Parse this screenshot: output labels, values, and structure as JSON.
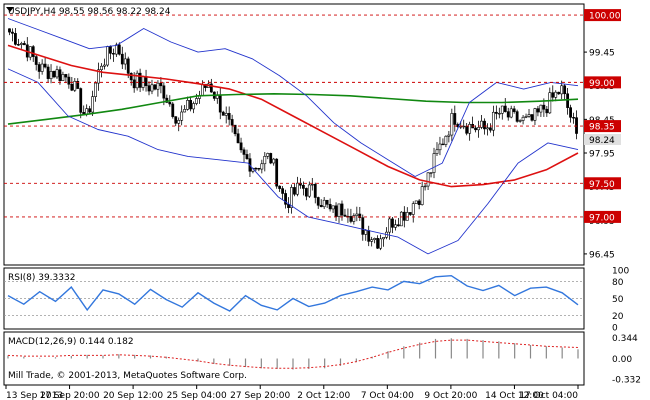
{
  "chart_data": {
    "type": "candlestick",
    "symbol": "USDJPY",
    "timeframe": "H4",
    "main_label": "USDJPY,H4  98.55 98.56 98.22 98.24",
    "last_price": "98.24",
    "price_range": [
      96.3,
      100.15
    ],
    "price_ticks": [
      "99.45",
      "98.95",
      "98.45",
      "97.95",
      "97.45",
      "96.95",
      "96.45"
    ],
    "levels": [
      {
        "value": 100.0,
        "label": "100.00"
      },
      {
        "value": 99.0,
        "label": "99.00"
      },
      {
        "value": 98.35,
        "label": "98.35"
      },
      {
        "value": 97.5,
        "label": "97.50"
      },
      {
        "value": 97.0,
        "label": "97.00"
      }
    ],
    "x_labels": [
      "13 Sep 2013",
      "17 Sep 20:00",
      "20 Sep 12:00",
      "25 Sep 04:00",
      "27 Sep 20:00",
      "2 Oct 12:00",
      "7 Oct 04:00",
      "9 Oct 20:00",
      "14 Oct 12:00",
      "17 Oct 04:00"
    ],
    "close_anchors": [
      99.75,
      99.55,
      99.2,
      99.15,
      99.05,
      98.45,
      99.3,
      99.55,
      99.05,
      98.95,
      98.9,
      98.45,
      98.7,
      99.0,
      98.55,
      97.95,
      97.75,
      97.9,
      97.2,
      97.45,
      97.35,
      97.05,
      97.15,
      96.85,
      96.65,
      96.95,
      97.1,
      97.4,
      98.0,
      98.5,
      98.35,
      98.3,
      98.55,
      98.45,
      98.4,
      98.65,
      98.9,
      98.24
    ],
    "series": [
      {
        "name": "MA50",
        "values": [
          99.55,
          99.4,
          99.25,
          99.15,
          99.1,
          99.05,
          98.98,
          98.9,
          98.75,
          98.5,
          98.25,
          98.0,
          97.75,
          97.55,
          97.45,
          97.48,
          97.55,
          97.7,
          97.95
        ]
      },
      {
        "name": "MA200",
        "values": [
          98.38,
          98.45,
          98.52,
          98.6,
          98.7,
          98.8,
          98.82,
          98.83,
          98.82,
          98.8,
          98.76,
          98.72,
          98.7,
          98.7,
          98.72,
          98.75
        ]
      },
      {
        "name": "BB Upper",
        "values": [
          99.95,
          99.8,
          99.65,
          99.5,
          99.55,
          99.8,
          99.6,
          99.45,
          99.5,
          99.35,
          99.1,
          98.8,
          98.4,
          98.1,
          97.85,
          97.6,
          97.8,
          98.7,
          99.0,
          98.9,
          99.0,
          98.95
        ]
      },
      {
        "name": "BB Lower",
        "values": [
          99.2,
          99.0,
          98.5,
          98.3,
          98.2,
          98.0,
          97.9,
          97.85,
          97.8,
          97.3,
          97.0,
          96.9,
          96.8,
          96.7,
          96.45,
          96.65,
          97.2,
          97.8,
          98.1,
          98.0
        ]
      }
    ],
    "rsi": {
      "label": "RSI(8) 39.3332",
      "range": [
        0,
        100
      ],
      "ticks": [
        "100",
        "80",
        "50",
        "20",
        "0"
      ],
      "levels": [
        80,
        50,
        20
      ],
      "values": [
        55,
        40,
        62,
        45,
        70,
        30,
        65,
        58,
        40,
        66,
        48,
        35,
        60,
        42,
        28,
        55,
        38,
        30,
        50,
        36,
        42,
        55,
        62,
        70,
        65,
        80,
        76,
        88,
        90,
        72,
        64,
        73,
        55,
        68,
        70,
        60,
        39
      ]
    },
    "macd": {
      "label": "MACD(12,26,9) 0.144 0.182",
      "ticks": [
        "0.344",
        "0.00",
        "-0.332"
      ],
      "range": [
        -0.4,
        0.4
      ],
      "hist": [
        0.05,
        0.03,
        0.01,
        0.02,
        0.04,
        0.06,
        0.05,
        0.07,
        0.06,
        0.05,
        0.03,
        0.0,
        -0.05,
        -0.09,
        -0.12,
        -0.14,
        -0.16,
        -0.17,
        -0.18,
        -0.17,
        -0.16,
        -0.12,
        -0.06,
        0.03,
        0.12,
        0.2,
        0.26,
        0.32,
        0.33,
        0.32,
        0.3,
        0.28,
        0.25,
        0.22,
        0.2,
        0.18,
        0.15
      ],
      "signal": [
        0.05,
        0.04,
        0.04,
        0.04,
        0.05,
        0.05,
        0.05,
        0.06,
        0.05,
        0.04,
        0.02,
        -0.01,
        -0.04,
        -0.08,
        -0.11,
        -0.13,
        -0.15,
        -0.16,
        -0.16,
        -0.15,
        -0.13,
        -0.1,
        -0.05,
        0.02,
        0.1,
        0.17,
        0.23,
        0.28,
        0.3,
        0.3,
        0.28,
        0.26,
        0.24,
        0.22,
        0.2,
        0.19,
        0.18
      ]
    },
    "footer": "Mill Trade, © 2001-2013, MetaQuotes Software Corp.",
    "colors": {
      "candle": "#000000",
      "ma_red": "#dd1111",
      "ma_green": "#118811",
      "bollinger": "#2233cc",
      "rsi": "#3377dd",
      "macd_hist": "#888888",
      "macd_signal": "#dd2222",
      "level_line": "#cc0000",
      "level_label_bg": "#cc0000",
      "last_label_bg": "#e0e0e0"
    }
  }
}
